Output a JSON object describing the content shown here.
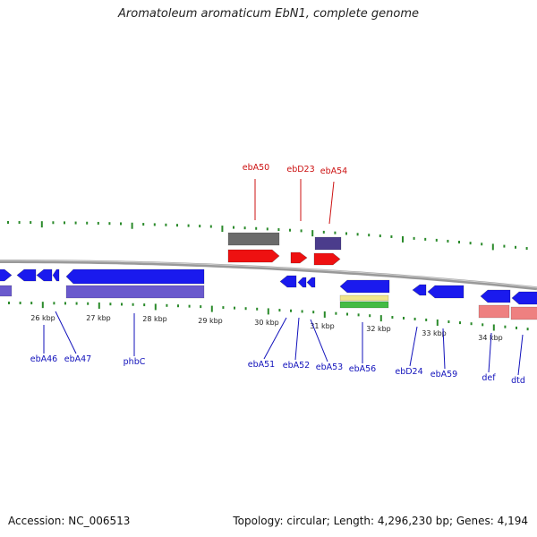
{
  "title": "Aromatoleum aromaticum EbN1, complete genome",
  "footer": {
    "accession": "Accession: NC_006513",
    "topology": "Topology: circular; Length: 4,296,230 bp; Genes: 4,194"
  },
  "colors": {
    "blue": "#1a1aee",
    "purple": "#6a5acd",
    "red": "#ee1111",
    "gray": "#6b6b6b",
    "darkpurple": "#4b3c8c",
    "yellow": "#f0e68c",
    "green": "#44bb44",
    "pink": "#ee8080",
    "tick": "#2a8a2a",
    "backbone": "#888888",
    "label_blue": "#1111bb",
    "label_red": "#cc1111"
  },
  "scale_labels": [
    "26 kbp",
    "27 kbp",
    "28 kbp",
    "29 kbp",
    "30 kbp",
    "31 kbp",
    "32 kbp",
    "33 kbp",
    "34 kbp"
  ],
  "gene_labels_top": [
    "ebA50",
    "ebD23",
    "ebA54"
  ],
  "gene_labels_bottom": [
    "ebA46",
    "ebA47",
    "phbC",
    "ebA51",
    "ebA52",
    "ebA53",
    "ebA56",
    "ebD24",
    "ebA59",
    "def",
    "dtd"
  ]
}
